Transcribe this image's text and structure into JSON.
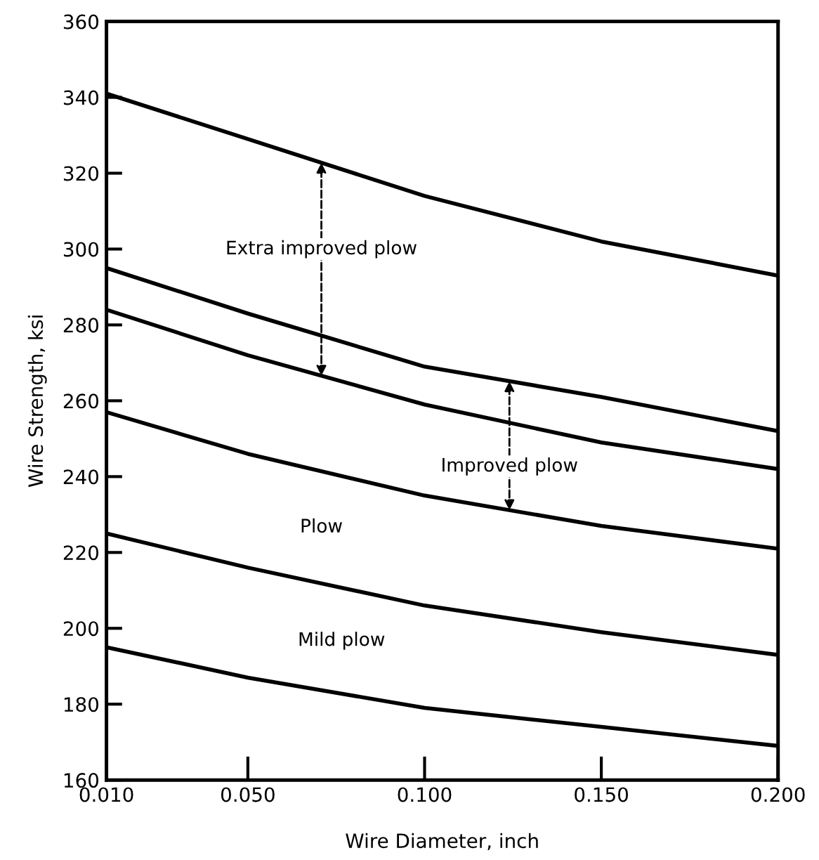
{
  "chart_data": {
    "type": "line",
    "xlabel": "Wire Diameter, inch",
    "ylabel": "Wire Strength, ksi",
    "x": [
      0.01,
      0.05,
      0.1,
      0.15,
      0.2
    ],
    "series": [
      {
        "color": "#000000",
        "values": [
          341,
          329,
          314,
          302,
          293
        ]
      },
      {
        "color": "#000000",
        "values": [
          295,
          283,
          269,
          261,
          252
        ]
      },
      {
        "color": "#000000",
        "values": [
          284,
          272,
          259,
          249,
          242
        ]
      },
      {
        "color": "#000000",
        "values": [
          257,
          246,
          235,
          227,
          221
        ]
      },
      {
        "color": "#000000",
        "values": [
          225,
          216,
          206,
          199,
          193
        ]
      },
      {
        "color": "#000000",
        "values": [
          195,
          187,
          179,
          174,
          169
        ]
      }
    ],
    "xlim": [
      0.01,
      0.2
    ],
    "xticks": [
      {
        "value": 0.01,
        "label": "0.010"
      },
      {
        "value": 0.05,
        "label": "0.050"
      },
      {
        "value": 0.1,
        "label": "0.100"
      },
      {
        "value": 0.15,
        "label": "0.150"
      },
      {
        "value": 0.2,
        "label": "0.200"
      }
    ],
    "ylim": [
      160,
      360
    ],
    "yticks": [
      160,
      180,
      200,
      220,
      240,
      260,
      280,
      300,
      320,
      340,
      360
    ],
    "annotations": [
      "Extra improved plow",
      "Improved plow",
      "Plow",
      "Mild plow"
    ],
    "grid": false,
    "legend": false,
    "marker": "none",
    "line_style": "solid"
  }
}
